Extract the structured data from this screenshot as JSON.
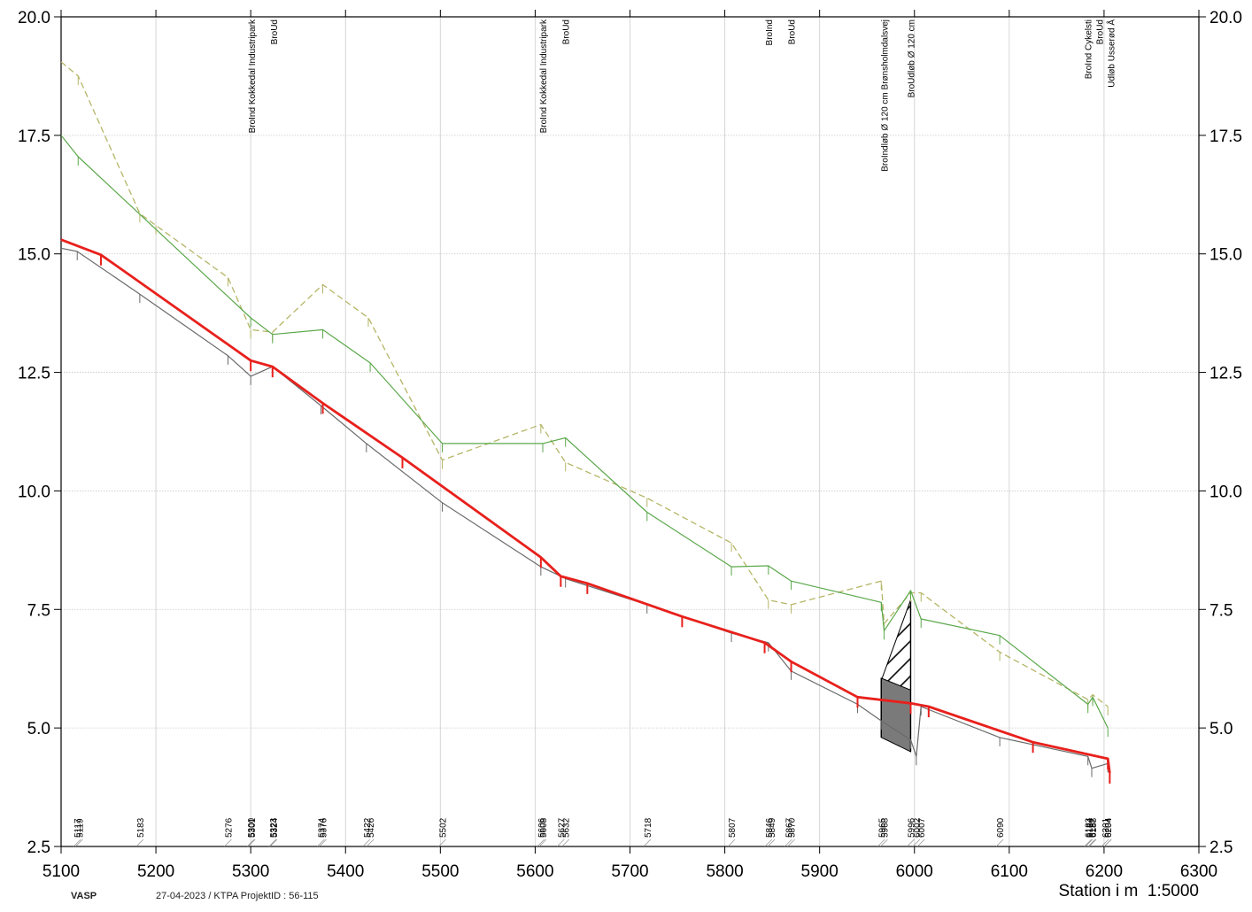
{
  "chart_data": {
    "type": "line",
    "title": "",
    "xlabel": "Station i m",
    "scale_label": "1:5000",
    "ylabel": "",
    "xlim": [
      5100,
      6300
    ],
    "ylim": [
      2.5,
      20.0
    ],
    "x_ticks": [
      5100,
      5200,
      5300,
      5400,
      5500,
      5600,
      5700,
      5800,
      5900,
      6000,
      6100,
      6200,
      6300
    ],
    "x_tick_labels": [
      "5100",
      "5200",
      "5300",
      "5400",
      "5500",
      "5600",
      "5700",
      "5800",
      "5900",
      "6000",
      "6100",
      "6200",
      "6300"
    ],
    "y_ticks": [
      2.5,
      5.0,
      7.5,
      10.0,
      12.5,
      15.0,
      17.5,
      20.0
    ],
    "y_tick_labels": [
      "2.5",
      "5.0",
      "7.5",
      "10.0",
      "12.5",
      "15.0",
      "17.5",
      "20.0"
    ],
    "grid": true,
    "series": [
      {
        "name": "",
        "style": "dashed",
        "color": "#b5b567",
        "points": [
          [
            5100,
            19.05
          ],
          [
            5118,
            18.75
          ],
          [
            5183,
            15.85
          ],
          [
            5200,
            15.6
          ],
          [
            5276,
            14.5
          ],
          [
            5300,
            13.4
          ],
          [
            5323,
            13.35
          ],
          [
            5376,
            14.35
          ],
          [
            5424,
            13.65
          ],
          [
            5502,
            10.65
          ],
          [
            5606,
            11.4
          ],
          [
            5632,
            10.6
          ],
          [
            5718,
            9.85
          ],
          [
            5807,
            8.9
          ],
          [
            5846,
            7.7
          ],
          [
            5870,
            7.6
          ],
          [
            5965,
            8.1
          ],
          [
            5968,
            7.2
          ],
          [
            5996,
            7.85
          ],
          [
            6007,
            7.85
          ],
          [
            6090,
            6.6
          ],
          [
            6183,
            5.6
          ],
          [
            6188,
            5.7
          ],
          [
            6204,
            5.45
          ]
        ]
      },
      {
        "name": "",
        "style": "solid",
        "color": "#5aa84a",
        "points": [
          [
            5100,
            17.5
          ],
          [
            5118,
            17.05
          ],
          [
            5300,
            13.65
          ],
          [
            5323,
            13.3
          ],
          [
            5376,
            13.4
          ],
          [
            5426,
            12.7
          ],
          [
            5502,
            11.0
          ],
          [
            5608,
            11.0
          ],
          [
            5632,
            11.12
          ],
          [
            5718,
            9.55
          ],
          [
            5807,
            8.4
          ],
          [
            5846,
            8.42
          ],
          [
            5870,
            8.1
          ],
          [
            5965,
            7.65
          ],
          [
            5968,
            7.05
          ],
          [
            5996,
            7.9
          ],
          [
            6007,
            7.3
          ],
          [
            6090,
            6.95
          ],
          [
            6183,
            5.5
          ],
          [
            6188,
            5.65
          ],
          [
            6204,
            5.0
          ]
        ]
      },
      {
        "name": "",
        "style": "solid",
        "color": "#6a6a6a",
        "points": [
          [
            5100,
            15.12
          ],
          [
            5117,
            15.05
          ],
          [
            5183,
            14.15
          ],
          [
            5276,
            12.85
          ],
          [
            5300,
            12.42
          ],
          [
            5323,
            12.62
          ],
          [
            5374,
            11.8
          ],
          [
            5422,
            11.0
          ],
          [
            5502,
            9.75
          ],
          [
            5606,
            8.4
          ],
          [
            5627,
            8.2
          ],
          [
            5632,
            8.15
          ],
          [
            5718,
            7.6
          ],
          [
            5807,
            7.0
          ],
          [
            5846,
            6.8
          ],
          [
            5870,
            6.2
          ],
          [
            5940,
            5.5
          ],
          [
            5965,
            5.15
          ],
          [
            5996,
            4.75
          ],
          [
            6002,
            4.4
          ],
          [
            6007,
            5.45
          ],
          [
            6090,
            4.8
          ],
          [
            6183,
            4.4
          ],
          [
            6187,
            4.15
          ],
          [
            6204,
            4.25
          ]
        ]
      },
      {
        "name": "",
        "style": "solid-bold",
        "color": "#e8201c",
        "points": [
          [
            5100,
            15.3
          ],
          [
            5142,
            14.98
          ],
          [
            5300,
            12.75
          ],
          [
            5323,
            12.62
          ],
          [
            5376,
            11.85
          ],
          [
            5460,
            10.7
          ],
          [
            5606,
            8.6
          ],
          [
            5627,
            8.2
          ],
          [
            5655,
            8.05
          ],
          [
            5755,
            7.35
          ],
          [
            5842,
            6.8
          ],
          [
            5870,
            6.4
          ],
          [
            5940,
            5.65
          ],
          [
            5996,
            5.52
          ],
          [
            6015,
            5.45
          ],
          [
            6125,
            4.7
          ],
          [
            6204,
            4.35
          ],
          [
            6206,
            4.05
          ]
        ]
      }
    ],
    "annotations": [
      {
        "x": 5301,
        "text": "BroInd Kokkedal Industripark"
      },
      {
        "x": 5324,
        "text": "BroUd"
      },
      {
        "x": 5608,
        "text": "BroInd Kokkedal Industripark"
      },
      {
        "x": 5632,
        "text": "BroUd"
      },
      {
        "x": 5846,
        "text": "BroInd"
      },
      {
        "x": 5870,
        "text": "BroUd"
      },
      {
        "x": 5968,
        "text": "BroIndløb Ø 120 cm Brønsholmdalsvej"
      },
      {
        "x": 5996,
        "text": "BroUdløb Ø 120 cm"
      },
      {
        "x": 6183,
        "text": "BroInd Cykelsti"
      },
      {
        "x": 6195,
        "text": "BroUd"
      },
      {
        "x": 6207,
        "text": "Udløb Usserød Å"
      }
    ],
    "station_labels": [
      "5117",
      "5119",
      "5183",
      "5276",
      "5300",
      "5301",
      "5323",
      "5324",
      "5374",
      "5376",
      "5422",
      "5426",
      "5502",
      "5606",
      "5608",
      "5627",
      "5632",
      "5718",
      "5807",
      "5846",
      "5849",
      "5867",
      "5870",
      "5965",
      "5968",
      "5996",
      "6002",
      "6007",
      "6090",
      "6183",
      "6184",
      "6187",
      "6188",
      "6201",
      "6204",
      "6204"
    ],
    "station_label_x": [
      5117,
      5119,
      5183,
      5276,
      5300,
      5301,
      5323,
      5324,
      5374,
      5376,
      5422,
      5426,
      5502,
      5606,
      5608,
      5627,
      5632,
      5718,
      5807,
      5846,
      5849,
      5867,
      5870,
      5965,
      5968,
      5996,
      6002,
      6007,
      6090,
      6183,
      6184,
      6187,
      6188,
      6201,
      6204,
      6204
    ],
    "culvert": {
      "x_start": 5965,
      "x_end": 5996
    }
  },
  "footer": {
    "brand": "VASP",
    "meta": "27-04-2023 / KTPA   ProjektID : 56-115"
  }
}
